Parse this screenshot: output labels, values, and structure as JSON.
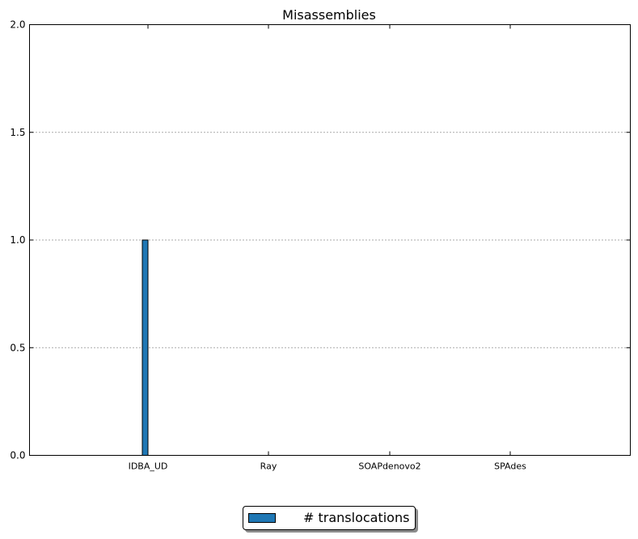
{
  "chart_data": {
    "type": "bar",
    "title": "Misassemblies",
    "xlabel": "",
    "ylabel": "",
    "categories": [
      "IDBA_UD",
      "Ray",
      "SOAPdenovo2",
      "SPAdes"
    ],
    "series": [
      {
        "name": "# translocations",
        "values": [
          1,
          0,
          0,
          0
        ]
      }
    ],
    "ylim": [
      0,
      2.0
    ],
    "yticks": [
      "0.0",
      "0.5",
      "1.0",
      "1.5",
      "2.0"
    ],
    "grid": "y-dotted",
    "legend_position": "bottom-center",
    "colors": {
      "series": "#1f77b4",
      "edge": "#000000",
      "grid": "#555555"
    }
  }
}
